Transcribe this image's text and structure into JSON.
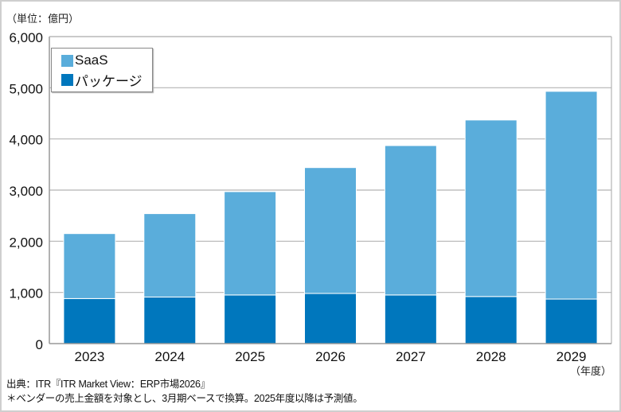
{
  "chart_data": {
    "type": "bar",
    "stacked": true,
    "unit_label": "（単位：億円）",
    "x_unit_label": "（年度）",
    "categories": [
      "2023",
      "2024",
      "2025",
      "2026",
      "2027",
      "2028",
      "2029"
    ],
    "series": [
      {
        "name": "パッケージ",
        "color": "#0077bd",
        "values": [
          880,
          910,
          950,
          980,
          950,
          920,
          870
        ]
      },
      {
        "name": "SaaS",
        "color": "#5aaddb",
        "values": [
          1270,
          1630,
          2020,
          2460,
          2920,
          3450,
          4060
        ]
      }
    ],
    "yticks": [
      "0",
      "1,000",
      "2,000",
      "3,000",
      "4,000",
      "5,000",
      "6,000"
    ],
    "ylim": [
      0,
      6000
    ],
    "grid": true,
    "legend_placement": "top-left",
    "legend": [
      "SaaS",
      "パッケージ"
    ]
  },
  "notes": {
    "source": "出典：ITR『ITR Market View：ERP市場2026』",
    "footnote": "＊ベンダーの売上金額を対象とし、3月期ベースで換算。2025年度以降は予測値。"
  }
}
